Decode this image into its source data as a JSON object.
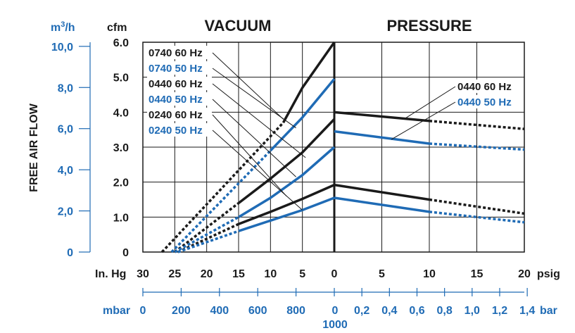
{
  "chart_data": {
    "type": "line",
    "sections": {
      "vacuum": "VACUUM",
      "pressure": "PRESSURE"
    },
    "y_axis_left": {
      "label": "FREE AIR FLOW",
      "unit": "m3/h",
      "unit_base": "m",
      "unit_sup": "3",
      "unit_rest": "/h",
      "ticks": [
        "10,0",
        "8,0",
        "6,0",
        "4,0",
        "2,0",
        "0"
      ],
      "tick_values": [
        10,
        8,
        6,
        4,
        2,
        0
      ],
      "range": [
        0,
        10.2
      ]
    },
    "y_axis_cfm": {
      "unit": "cfm",
      "ticks": [
        "6.0",
        "5.0",
        "4.0",
        "3.0",
        "2.0",
        "1.0",
        "0"
      ],
      "tick_values": [
        6,
        5,
        4,
        3,
        2,
        1,
        0
      ],
      "range": [
        0,
        6
      ]
    },
    "x_axis_vacuum": {
      "unit": "In. Hg",
      "ticks": [
        "30",
        "25",
        "20",
        "15",
        "10",
        "5",
        "0"
      ],
      "tick_values": [
        30,
        25,
        20,
        15,
        10,
        5,
        0
      ],
      "range": [
        30,
        0
      ]
    },
    "x_axis_pressure": {
      "unit": "psig",
      "ticks": [
        "0",
        "5",
        "10",
        "15",
        "20"
      ],
      "tick_values": [
        0,
        5,
        10,
        15,
        20
      ],
      "range": [
        0,
        20
      ]
    },
    "x_axis_vacuum_metric": {
      "unit": "mbar",
      "ticks": [
        "0",
        "200",
        "400",
        "600",
        "800"
      ],
      "tick_values": [
        0,
        200,
        400,
        600,
        800
      ],
      "end_label_top": "0",
      "end_label_bottom": "1000"
    },
    "x_axis_pressure_metric": {
      "unit": "bar",
      "ticks": [
        "0,2",
        "0,4",
        "0,6",
        "0,8",
        "1,0",
        "1,2",
        "1,4"
      ],
      "tick_values": [
        0.2,
        0.4,
        0.6,
        0.8,
        1.0,
        1.2,
        1.4
      ]
    },
    "series": [
      {
        "name": "0740 60 Hz",
        "color": "#1a1a1a",
        "side": "vacuum",
        "solid": [
          [
            8,
            3.7
          ],
          [
            5,
            4.7
          ],
          [
            0,
            6.0
          ]
        ],
        "dashed": [
          [
            27,
            0
          ],
          [
            8,
            3.7
          ]
        ]
      },
      {
        "name": "0740 50 Hz",
        "color": "#1f6bb5",
        "side": "vacuum",
        "solid": [
          [
            10,
            2.9
          ],
          [
            5,
            3.85
          ],
          [
            0,
            4.95
          ]
        ],
        "dashed": [
          [
            25.5,
            0
          ],
          [
            10,
            2.9
          ]
        ]
      },
      {
        "name": "0440 60 Hz",
        "color": "#1a1a1a",
        "side": "vacuum",
        "solid": [
          [
            15,
            1.4
          ],
          [
            10,
            2.1
          ],
          [
            5,
            2.85
          ],
          [
            0,
            3.8
          ]
        ],
        "dashed": [
          [
            25,
            0
          ],
          [
            15,
            1.4
          ]
        ]
      },
      {
        "name": "0440 50 Hz",
        "color": "#1f6bb5",
        "side": "vacuum",
        "solid": [
          [
            15,
            1.0
          ],
          [
            10,
            1.55
          ],
          [
            5,
            2.2
          ],
          [
            0,
            3.0
          ]
        ],
        "dashed": [
          [
            25,
            0
          ],
          [
            15,
            1.0
          ]
        ]
      },
      {
        "name": "0240 60 Hz",
        "color": "#1a1a1a",
        "side": "vacuum",
        "solid": [
          [
            15,
            0.8
          ],
          [
            10,
            1.15
          ],
          [
            5,
            1.52
          ],
          [
            0,
            1.92
          ]
        ],
        "dashed": [
          [
            24.5,
            0
          ],
          [
            15,
            0.8
          ]
        ]
      },
      {
        "name": "0240 50 Hz",
        "color": "#1f6bb5",
        "side": "vacuum",
        "solid": [
          [
            15,
            0.6
          ],
          [
            10,
            0.9
          ],
          [
            5,
            1.2
          ],
          [
            0,
            1.55
          ]
        ],
        "dashed": [
          [
            24.5,
            0
          ],
          [
            15,
            0.6
          ]
        ]
      },
      {
        "name": "0440 60 Hz",
        "color": "#1a1a1a",
        "side": "pressure",
        "solid": [
          [
            0,
            4.0
          ],
          [
            10,
            3.75
          ]
        ],
        "dashed": [
          [
            10,
            3.75
          ],
          [
            20,
            3.52
          ]
        ]
      },
      {
        "name": "0440 50 Hz",
        "color": "#1f6bb5",
        "side": "pressure",
        "solid": [
          [
            0,
            3.45
          ],
          [
            10,
            3.1
          ]
        ],
        "dashed": [
          [
            10,
            3.1
          ],
          [
            20,
            2.93
          ]
        ]
      },
      {
        "name": "0240 60 Hz",
        "color": "#1a1a1a",
        "side": "pressure",
        "solid": [
          [
            0,
            1.92
          ],
          [
            10,
            1.5
          ]
        ],
        "dashed": [
          [
            10,
            1.5
          ],
          [
            20,
            1.1
          ]
        ]
      },
      {
        "name": "0240 50 Hz",
        "color": "#1f6bb5",
        "side": "pressure",
        "solid": [
          [
            0,
            1.55
          ],
          [
            10,
            1.15
          ]
        ],
        "dashed": [
          [
            10,
            1.15
          ],
          [
            20,
            0.85
          ]
        ]
      }
    ],
    "legend_vacuum": [
      {
        "label": "0740 60 Hz",
        "color": "#1a1a1a",
        "target": [
          8,
          3.8
        ]
      },
      {
        "label": "0740 50 Hz",
        "color": "#1f6bb5",
        "target": [
          6,
          3.55
        ]
      },
      {
        "label": "0440 60 Hz",
        "color": "#1a1a1a",
        "target": [
          4.5,
          2.7
        ]
      },
      {
        "label": "0440 50 Hz",
        "color": "#1f6bb5",
        "target": [
          6,
          2.15
        ]
      },
      {
        "label": "0240 60 Hz",
        "color": "#1a1a1a",
        "target": [
          7.5,
          1.6
        ]
      },
      {
        "label": "0240 50 Hz",
        "color": "#1f6bb5",
        "target": [
          5,
          1.2
        ]
      }
    ],
    "legend_pressure": [
      {
        "label": "0440 60 Hz",
        "color": "#1a1a1a",
        "target": [
          7.5,
          3.83
        ]
      },
      {
        "label": "0440 50 Hz",
        "color": "#1f6bb5",
        "target": [
          6,
          3.22
        ]
      }
    ]
  }
}
